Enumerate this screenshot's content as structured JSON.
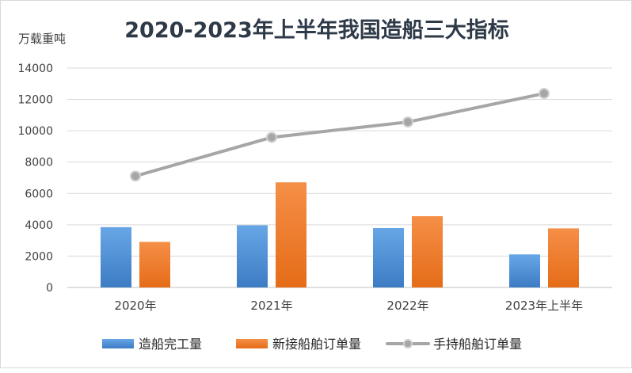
{
  "chart_data": {
    "type": "bar",
    "title": "2020-2023年上半年我国造船三大指标",
    "ylabel": "万载重吨",
    "xlabel": "",
    "ylim": [
      0,
      14000
    ],
    "yticks": [
      0,
      2000,
      4000,
      6000,
      8000,
      10000,
      12000,
      14000
    ],
    "grid": true,
    "legend_position": "bottom",
    "categories": [
      "2020年",
      "2021年",
      "2022年",
      "2023年上半年"
    ],
    "series": [
      {
        "name": "造船完工量",
        "kind": "bar",
        "color": "#4e8fd6",
        "values": [
          3850,
          3970,
          3790,
          2110
        ]
      },
      {
        "name": "新接船舶订单量",
        "kind": "bar",
        "color": "#f07f2e",
        "values": [
          2910,
          6710,
          4550,
          3770
        ]
      },
      {
        "name": "手持船舶订单量",
        "kind": "line",
        "color": "#a6a6a6",
        "values": [
          7110,
          9580,
          10560,
          12380
        ]
      }
    ]
  }
}
